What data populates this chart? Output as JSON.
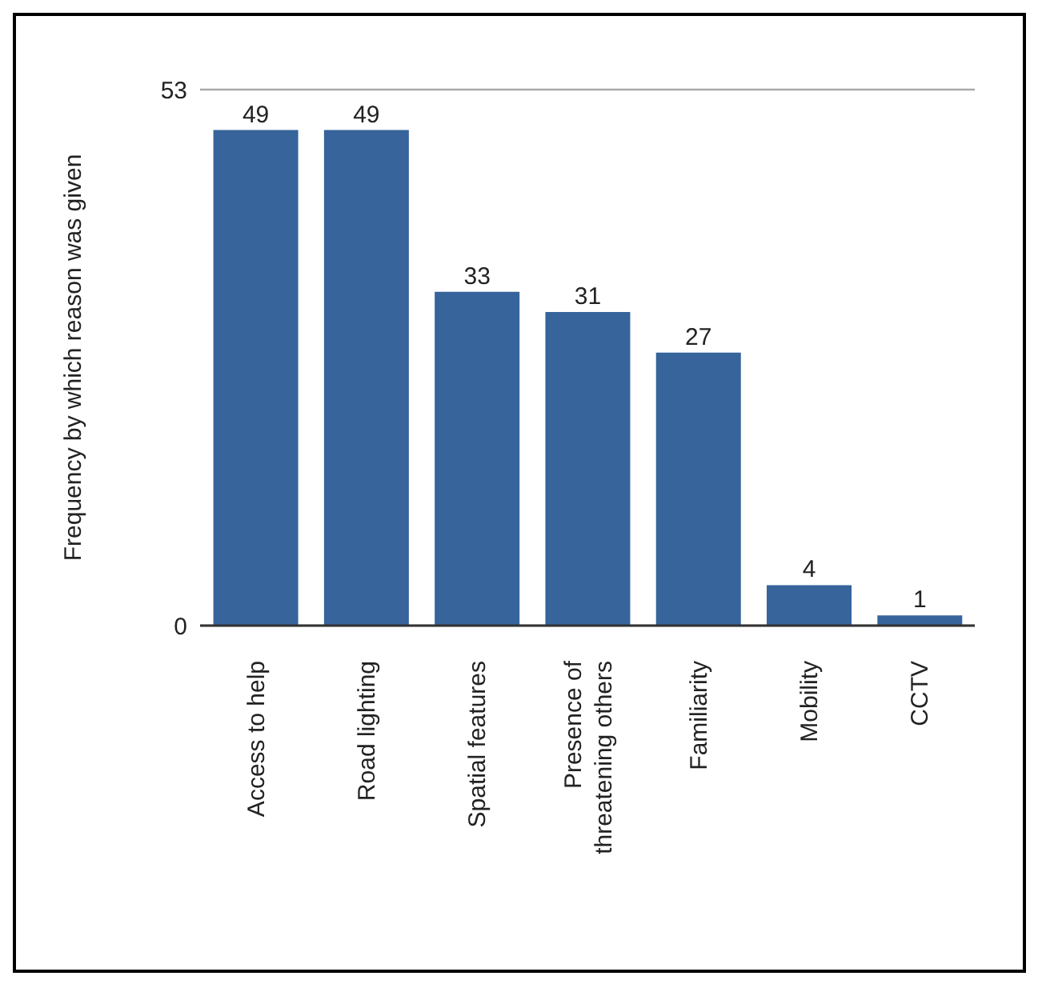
{
  "chart_data": {
    "type": "bar",
    "ylabel": "Frequency by which reason was given",
    "categories": [
      "Access to help",
      "Road lighting",
      "Spatial features",
      "Presence of threatening others",
      "Familiarity",
      "Mobility",
      "CCTV"
    ],
    "values": [
      49,
      49,
      33,
      31,
      27,
      4,
      1
    ],
    "color": "#36649b",
    "ylim": [
      0,
      53
    ],
    "yticks": [
      0,
      53
    ],
    "grid": "y",
    "data_labels": true,
    "legend": false
  }
}
